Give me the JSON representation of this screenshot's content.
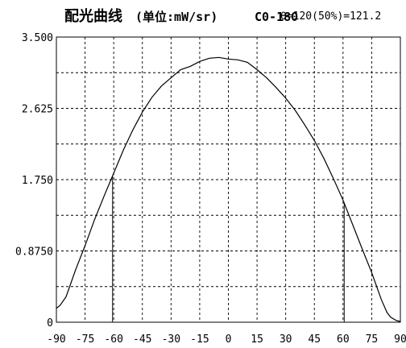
{
  "chart_data": {
    "type": "line",
    "title": "配光曲线",
    "title_unit": "(单位:mW/sr)",
    "curve_label": "C0-180",
    "beam_angle_label": "θ=120(50%)=121.2",
    "x_ticks": [
      "-90",
      "-75",
      "-60",
      "-45",
      "-30",
      "-15",
      "0",
      "15",
      "30",
      "45",
      "60",
      "75",
      "90"
    ],
    "y_ticks": [
      "0",
      "0.8750",
      "1.750",
      "2.625",
      "3.500"
    ],
    "xlim": [
      -90,
      90
    ],
    "ylim": [
      0,
      3.5
    ],
    "grid": true,
    "half_intensity_angles": [
      -60.6,
      60.6
    ],
    "series": [
      {
        "x": [
          -90,
          -88,
          -85,
          -83,
          -80,
          -75,
          -70,
          -65,
          -60,
          -55,
          -50,
          -45,
          -40,
          -35,
          -30,
          -25,
          -20,
          -15,
          -10,
          -5,
          0,
          5,
          10,
          15,
          20,
          25,
          30,
          35,
          40,
          45,
          50,
          55,
          60,
          65,
          70,
          75,
          80,
          83,
          85,
          88,
          90
        ],
        "y": [
          0.17,
          0.21,
          0.31,
          0.44,
          0.64,
          0.94,
          1.26,
          1.55,
          1.83,
          2.11,
          2.36,
          2.58,
          2.76,
          2.9,
          3.0,
          3.1,
          3.14,
          3.2,
          3.24,
          3.25,
          3.23,
          3.22,
          3.19,
          3.1,
          3.0,
          2.88,
          2.75,
          2.6,
          2.42,
          2.23,
          2.01,
          1.76,
          1.5,
          1.2,
          0.9,
          0.61,
          0.28,
          0.12,
          0.06,
          0.02,
          0.01
        ]
      }
    ]
  }
}
